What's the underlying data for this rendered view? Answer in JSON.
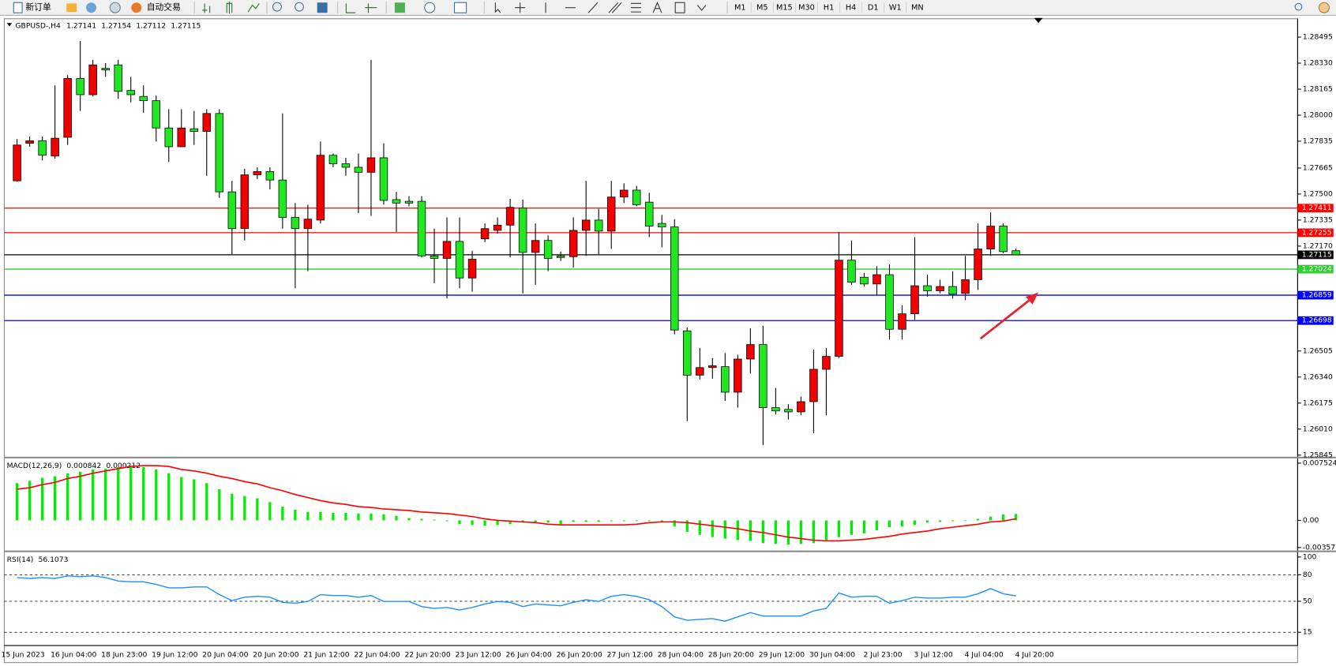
{
  "toolbar": {
    "new_order": "新订单",
    "auto_trading": "自动交易",
    "timeframes": [
      "M1",
      "M5",
      "M15",
      "M30",
      "H1",
      "H4",
      "D1",
      "W1",
      "MN"
    ]
  },
  "chart_data": [
    {
      "type": "candlestick",
      "symbol": "GBPUSD-,H4",
      "up_color": "#f00000",
      "down_color": "#22e622",
      "candles": [
        [
          1.27584,
          1.27849,
          1.27579,
          1.27811
        ],
        [
          1.27822,
          1.27865,
          1.278,
          1.27838
        ],
        [
          1.27838,
          1.27865,
          1.27714,
          1.27746
        ],
        [
          1.27741,
          1.28189,
          1.27724,
          1.27854
        ],
        [
          1.2786,
          1.28254,
          1.27811,
          1.28233
        ],
        [
          1.28233,
          1.2847,
          1.28027,
          1.2813
        ],
        [
          1.2813,
          1.28351,
          1.28119,
          1.28319
        ],
        [
          1.28297,
          1.2833,
          1.28243,
          1.28287
        ],
        [
          1.28319,
          1.28351,
          1.28103,
          1.28151
        ],
        [
          1.28157,
          1.28243,
          1.28081,
          1.2813
        ],
        [
          1.28119,
          1.28189,
          1.28016,
          1.28092
        ],
        [
          1.28092,
          1.28124,
          1.27833,
          1.27919
        ],
        [
          1.27919,
          1.28038,
          1.27703,
          1.278
        ],
        [
          1.278,
          1.28038,
          1.278,
          1.27919
        ],
        [
          1.27914,
          1.28027,
          1.27811,
          1.27897
        ],
        [
          1.27897,
          1.28038,
          1.27616,
          1.28011
        ],
        [
          1.28011,
          1.28038,
          1.27476,
          1.27514
        ],
        [
          1.27514,
          1.27584,
          1.27119,
          1.27281
        ],
        [
          1.27281,
          1.2766,
          1.27206,
          1.27622
        ],
        [
          1.27622,
          1.2767,
          1.27595,
          1.27643
        ],
        [
          1.27643,
          1.2767,
          1.2753,
          1.27589
        ],
        [
          1.27589,
          1.28011,
          1.27281,
          1.27352
        ],
        [
          1.27352,
          1.27443,
          1.26903,
          1.27281
        ],
        [
          1.27281,
          1.27433,
          1.27011,
          1.27341
        ],
        [
          1.27335,
          1.27833,
          1.27314,
          1.27746
        ],
        [
          1.27746,
          1.27757,
          1.2767,
          1.27692
        ],
        [
          1.27692,
          1.2773,
          1.27616,
          1.2767
        ],
        [
          1.2767,
          1.27757,
          1.27379,
          1.27638
        ],
        [
          1.27638,
          1.28351,
          1.27362,
          1.2773
        ],
        [
          1.2773,
          1.27822,
          1.27433,
          1.2746
        ],
        [
          1.27465,
          1.27514,
          1.2726,
          1.27443
        ],
        [
          1.27454,
          1.27487,
          1.27422,
          1.27443
        ],
        [
          1.27454,
          1.27487,
          1.27098,
          1.27108
        ],
        [
          1.27108,
          1.27281,
          1.26935,
          1.27092
        ],
        [
          1.27092,
          1.27352,
          1.26838,
          1.272
        ],
        [
          1.272,
          1.27352,
          1.26903,
          1.26968
        ],
        [
          1.26968,
          1.27141,
          1.26881,
          1.27087
        ],
        [
          1.27216,
          1.27314,
          1.27195,
          1.27281
        ],
        [
          1.2727,
          1.27352,
          1.27249,
          1.27303
        ],
        [
          1.27303,
          1.2747,
          1.27098,
          1.27416
        ],
        [
          1.27411,
          1.27465,
          1.2687,
          1.2713
        ],
        [
          1.2713,
          1.27314,
          1.26925,
          1.27206
        ],
        [
          1.27206,
          1.27238,
          1.27011,
          1.27092
        ],
        [
          1.27108,
          1.27135,
          1.27076,
          1.27098
        ],
        [
          1.27103,
          1.27352,
          1.27033,
          1.2727
        ],
        [
          1.2727,
          1.27584,
          1.27108,
          1.27335
        ],
        [
          1.27335,
          1.27406,
          1.27119,
          1.27265
        ],
        [
          1.27265,
          1.27584,
          1.27152,
          1.27481
        ],
        [
          1.27481,
          1.27568,
          1.27443,
          1.27525
        ],
        [
          1.27525,
          1.27552,
          1.27422,
          1.27433
        ],
        [
          1.27449,
          1.27508,
          1.27227,
          1.27297
        ],
        [
          1.27314,
          1.27368,
          1.27162,
          1.27292
        ],
        [
          1.27292,
          1.27341,
          1.26611,
          1.26638
        ],
        [
          1.26633,
          1.26654,
          1.2606,
          1.26352
        ],
        [
          1.26352,
          1.26525,
          1.26325,
          1.264
        ],
        [
          1.264,
          1.2646,
          1.2633,
          1.26411
        ],
        [
          1.26406,
          1.26492,
          1.26189,
          1.26244
        ],
        [
          1.26244,
          1.26481,
          1.26146,
          1.26454
        ],
        [
          1.26454,
          1.26649,
          1.26362,
          1.26546
        ],
        [
          1.26546,
          1.26665,
          1.25908,
          1.26146
        ],
        [
          1.26146,
          1.26271,
          1.26103,
          1.26125
        ],
        [
          1.26135,
          1.26168,
          1.26071,
          1.26119
        ],
        [
          1.26119,
          1.26216,
          1.26098,
          1.26184
        ],
        [
          1.26184,
          1.26514,
          1.25984,
          1.26389
        ],
        [
          1.26389,
          1.26525,
          1.26098,
          1.26471
        ],
        [
          1.26471,
          1.2726,
          1.2646,
          1.27081
        ],
        [
          1.27081,
          1.27206,
          1.26925,
          1.26941
        ],
        [
          1.26973,
          1.27,
          1.26914,
          1.2693
        ],
        [
          1.2693,
          1.27043,
          1.2686,
          1.26989
        ],
        [
          1.26989,
          1.27054,
          1.26579,
          1.26643
        ],
        [
          1.26643,
          1.26795,
          1.26579,
          1.26741
        ],
        [
          1.26741,
          1.27227,
          1.26703,
          1.26919
        ],
        [
          1.26919,
          1.26989,
          1.26849,
          1.26887
        ],
        [
          1.26887,
          1.26957,
          1.2687,
          1.26914
        ],
        [
          1.26914,
          1.27011,
          1.26838,
          1.26865
        ],
        [
          1.2687,
          1.27108,
          1.26827,
          1.26957
        ],
        [
          1.26957,
          1.27314,
          1.26892,
          1.27152
        ],
        [
          1.27152,
          1.27384,
          1.27108,
          1.27297
        ],
        [
          1.27297,
          1.27314,
          1.27125,
          1.27135
        ],
        [
          1.27141,
          1.27154,
          1.27112,
          1.27115
        ]
      ],
      "ylim": [
        1.25838,
        1.28606
      ],
      "yticks": [
        1.28495,
        {
          "value": 1.2833,
          "label": "1.28330"
        },
        1.28165,
        {
          "value": 1.28,
          "label": "1.28000"
        },
        1.27835,
        1.27665,
        {
          "value": 1.275,
          "label": "1.27500"
        },
        1.27335,
        {
          "value": 1.2717,
          "label": "1.27170"
        },
        1.26505,
        {
          "value": 1.2634,
          "label": "1.26340"
        },
        1.26175,
        {
          "value": 1.2601,
          "label": "1.26010"
        },
        1.25845
      ],
      "levels": [
        {
          "value": 1.27411,
          "color": "#ff0000"
        },
        {
          "value": 1.27255,
          "color": "#ff0000"
        },
        {
          "value": 1.27115,
          "color": "#000000"
        },
        {
          "value": 1.27024,
          "color": "#32cd32"
        },
        {
          "value": 1.26859,
          "color": "#0000ff"
        },
        {
          "value": 1.26698,
          "color": "#0000ff"
        }
      ],
      "time_labels": [
        "15 Jun 2023",
        "16 Jun 04:00",
        "18 Jun 23:00",
        "19 Jun 12:00",
        "20 Jun 04:00",
        "20 Jun 20:00",
        "21 Jun 12:00",
        "22 Jun 04:00",
        "22 Jun 20:00",
        "23 Jun 12:00",
        "26 Jun 04:00",
        "26 Jun 20:00",
        "27 Jun 12:00",
        "28 Jun 04:00",
        "28 Jun 20:00",
        "29 Jun 12:00",
        "30 Jun 04:00",
        "2 Jul 23:00",
        "3 Jul 12:00",
        "4 Jul 04:00",
        "4 Jul 20:00"
      ]
    },
    {
      "type": "macd",
      "title": "MACD(12,26,9)",
      "histogram_color": "#00ee00",
      "signal_color": "#ff0000",
      "histogram": [
        0.0049,
        0.0052,
        0.0056,
        0.0058,
        0.0062,
        0.0064,
        0.0067,
        0.0068,
        0.007,
        0.0071,
        0.007,
        0.0067,
        0.0062,
        0.0057,
        0.0054,
        0.0049,
        0.0041,
        0.0035,
        0.0032,
        0.0029,
        0.0024,
        0.0018,
        0.0014,
        0.0011,
        0.0011,
        0.001,
        0.001,
        0.0009,
        0.0009,
        0.0008,
        0.0006,
        0.0003,
        0.0002,
        0.0001,
        -0.0001,
        -0.0005,
        -0.0006,
        -0.0007,
        -0.0006,
        -0.0005,
        -0.0003,
        -0.0003,
        -0.0003,
        -0.0005,
        -0.0002,
        -0.0002,
        -0.0002,
        -0.0001,
        -0.0001,
        -0.0001,
        -0.0001,
        -0.0002,
        -0.0008,
        -0.0015,
        -0.0019,
        -0.0022,
        -0.0024,
        -0.0026,
        -0.0027,
        -0.003,
        -0.0031,
        -0.0032,
        -0.0031,
        -0.003,
        -0.0026,
        -0.0022,
        -0.0019,
        -0.0017,
        -0.0013,
        -0.0009,
        -0.0008,
        -0.0006,
        -0.0003,
        -0.0002,
        -0.0001,
        0,
        0.0002,
        0.0005,
        0.0008,
        0.000842
      ],
      "signal": [
        0.0041,
        0.0043,
        0.0047,
        0.005,
        0.0055,
        0.0058,
        0.0062,
        0.0065,
        0.0068,
        0.0071,
        0.0072,
        0.0072,
        0.0071,
        0.0067,
        0.0065,
        0.0062,
        0.0058,
        0.0055,
        0.0051,
        0.0048,
        0.0043,
        0.0039,
        0.0034,
        0.003,
        0.0026,
        0.0023,
        0.0021,
        0.0018,
        0.0017,
        0.0015,
        0.0014,
        0.0013,
        0.0011,
        0.001,
        0.0009,
        0.0007,
        0.0005,
        0.0002,
        0,
        -0.0001,
        -0.0002,
        -0.0003,
        -0.0005,
        -0.0006,
        -0.0006,
        -0.0006,
        -0.0006,
        -0.0006,
        -0.0006,
        -0.0005,
        -0.0003,
        -0.0002,
        -0.0002,
        -0.0003,
        -0.0005,
        -0.0007,
        -0.0009,
        -0.0011,
        -0.0014,
        -0.0016,
        -0.0019,
        -0.0022,
        -0.0024,
        -0.0026,
        -0.0027,
        -0.0027,
        -0.0026,
        -0.0025,
        -0.0023,
        -0.0021,
        -0.0018,
        -0.0016,
        -0.0014,
        -0.0011,
        -0.0009,
        -0.0007,
        -0.0005,
        -0.0002,
        -0.0001,
        0.000212
      ],
      "ylim": [
        -0.0039,
        0.0081
      ],
      "yticks": [
        0.007524,
        {
          "value": 0,
          "label": "0.00"
        },
        -0.003577
      ]
    },
    {
      "type": "rsi",
      "title": "RSI(14)",
      "color": "#1e8fff",
      "values": [
        76.8,
        75.8,
        76.8,
        75.8,
        78.7,
        77.8,
        78.7,
        76.8,
        72.9,
        72.0,
        72.0,
        69.1,
        65.2,
        65.2,
        66.2,
        66.2,
        57.5,
        50.7,
        54.6,
        55.6,
        54.6,
        48.8,
        47.8,
        49.8,
        57.5,
        56.5,
        56.5,
        54.6,
        56.5,
        49.8,
        49.8,
        49.8,
        44.0,
        42.0,
        43.0,
        40.1,
        43.0,
        46.9,
        49.8,
        48.8,
        44.0,
        46.9,
        45.9,
        44.9,
        48.8,
        51.7,
        49.8,
        55.6,
        57.5,
        55.6,
        51.7,
        44.0,
        32.4,
        28.5,
        29.5,
        30.4,
        27.5,
        32.4,
        37.2,
        33.3,
        33.3,
        33.3,
        33.3,
        39.1,
        42.0,
        59.4,
        54.6,
        55.6,
        55.6,
        47.8,
        50.7,
        54.6,
        53.6,
        53.6,
        54.6,
        54.6,
        58.5,
        64.3,
        58.5,
        56.1073
      ],
      "ylim": [
        0,
        105
      ],
      "yticks": [
        100,
        80,
        50,
        15
      ],
      "levels": [
        80,
        50,
        15
      ]
    }
  ]
}
